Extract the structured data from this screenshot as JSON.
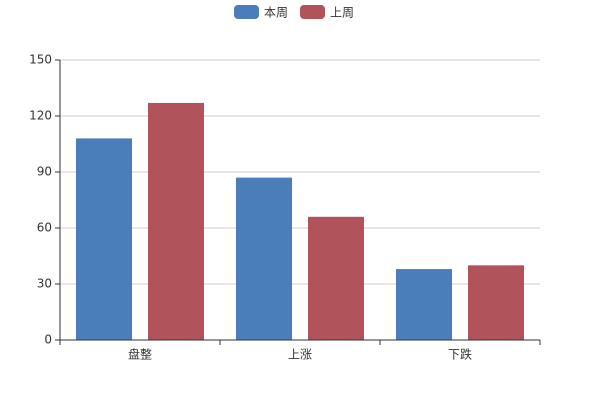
{
  "chart_data": {
    "type": "bar",
    "categories": [
      "盘整",
      "上涨",
      "下跌"
    ],
    "series": [
      {
        "name": "本周",
        "color": "#4a7ebb",
        "values": [
          108,
          87,
          38
        ]
      },
      {
        "name": "上周",
        "color": "#b0535a",
        "values": [
          127,
          66,
          40
        ]
      }
    ],
    "ylim": [
      0,
      150
    ],
    "yticks": [
      0,
      30,
      60,
      90,
      120,
      150
    ],
    "grid": true,
    "legend": "top"
  }
}
